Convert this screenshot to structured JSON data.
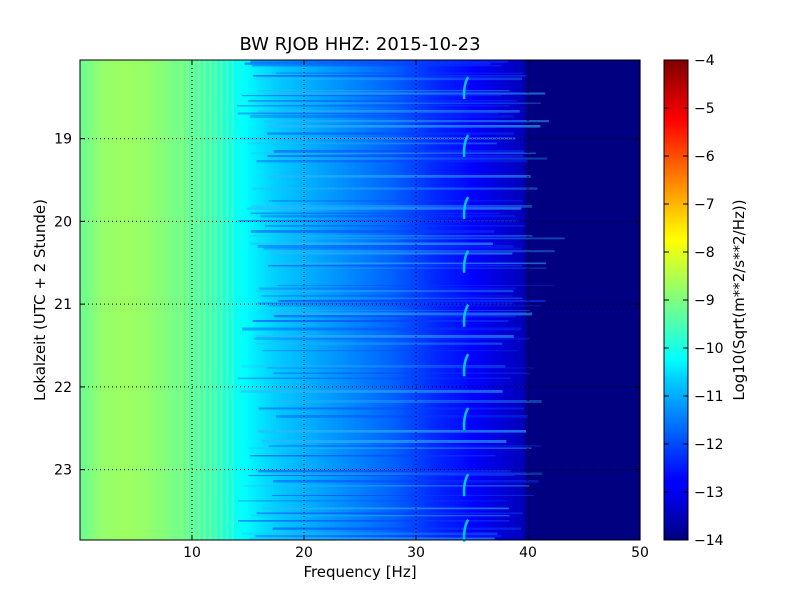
{
  "chart_data": {
    "type": "heatmap",
    "title": "BW RJOB HHZ: 2015-10-23",
    "xlabel": "Frequency [Hz]",
    "ylabel": "Lokalzeit (UTC + 2 Stunde)",
    "xlim": [
      0,
      50
    ],
    "ylim": [
      18.05,
      23.85
    ],
    "y_inverted": true,
    "x_ticks": [
      10,
      20,
      30,
      40,
      50
    ],
    "y_ticks": [
      19,
      20,
      21,
      22,
      23
    ],
    "grid": true,
    "colormap": "jet",
    "colorbar": {
      "label": "Log10(Sqrt(m**2/s**2/Hz))",
      "range": [
        -14,
        -4
      ],
      "ticks": [
        -4,
        -5,
        -6,
        -7,
        -8,
        -9,
        -10,
        -11,
        -12,
        -13,
        -14
      ]
    },
    "profile": {
      "frequency_hz": [
        0,
        2,
        4,
        6,
        8,
        10,
        12,
        14,
        16,
        18,
        20,
        22,
        24,
        26,
        28,
        30,
        32,
        34,
        36,
        38,
        39.5,
        40,
        45,
        50
      ],
      "level": [
        -9.2,
        -8.8,
        -8.7,
        -8.8,
        -9.0,
        -9.3,
        -9.6,
        -10.1,
        -10.5,
        -10.8,
        -11.0,
        -11.2,
        -11.4,
        -11.6,
        -11.8,
        -12.1,
        -12.4,
        -12.6,
        -12.9,
        -13.2,
        -13.4,
        -14.0,
        -14.0,
        -14.0
      ]
    },
    "line_feature": {
      "frequency_hz": 34.3,
      "level": -10.8,
      "times": [
        18.4,
        19.1,
        19.85,
        20.5,
        21.15,
        21.75,
        22.4,
        23.2,
        23.75
      ]
    }
  }
}
